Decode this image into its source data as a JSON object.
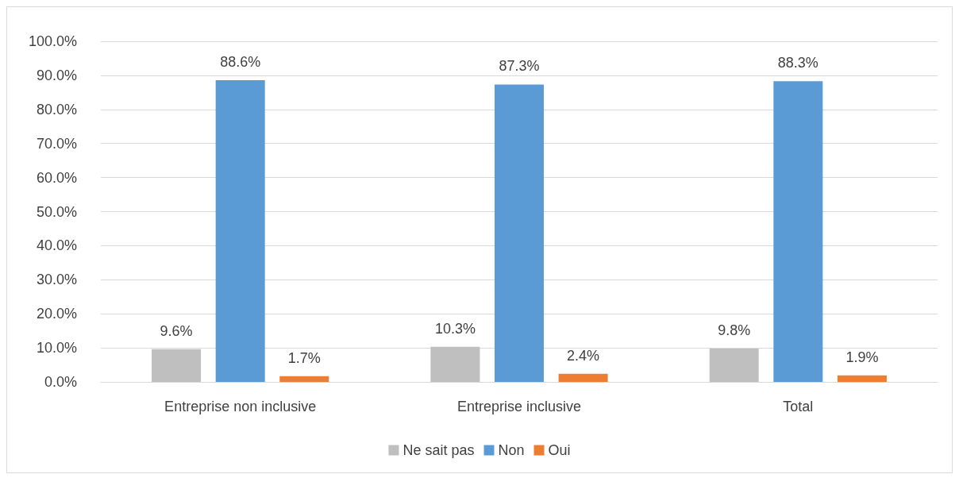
{
  "chart_data": {
    "type": "bar",
    "categories": [
      "Entreprise non inclusive",
      "Entreprise inclusive",
      "Total"
    ],
    "series": [
      {
        "name": "Ne sait pas",
        "color": "#bfbfbf",
        "values": [
          9.6,
          10.3,
          9.8
        ],
        "value_labels": [
          "9.6%",
          "10.3%",
          "9.8%"
        ]
      },
      {
        "name": "Non",
        "color": "#5b9bd5",
        "values": [
          88.6,
          87.3,
          88.3
        ],
        "value_labels": [
          "88.6%",
          "87.3%",
          "88.3%"
        ]
      },
      {
        "name": "Oui",
        "color": "#ed7d31",
        "values": [
          1.7,
          2.4,
          1.9
        ],
        "value_labels": [
          "1.7%",
          "2.4%",
          "1.9%"
        ]
      }
    ],
    "ylim": [
      0,
      100
    ],
    "yticks": [
      {
        "value": 0,
        "label": "0.0%"
      },
      {
        "value": 10,
        "label": "10.0%"
      },
      {
        "value": 20,
        "label": "20.0%"
      },
      {
        "value": 30,
        "label": "30.0%"
      },
      {
        "value": 40,
        "label": "40.0%"
      },
      {
        "value": 50,
        "label": "50.0%"
      },
      {
        "value": 60,
        "label": "60.0%"
      },
      {
        "value": 70,
        "label": "70.0%"
      },
      {
        "value": 80,
        "label": "80.0%"
      },
      {
        "value": 90,
        "label": "90.0%"
      },
      {
        "value": 100,
        "label": "100.0%"
      }
    ],
    "grid": "y",
    "legend": "bottom"
  }
}
